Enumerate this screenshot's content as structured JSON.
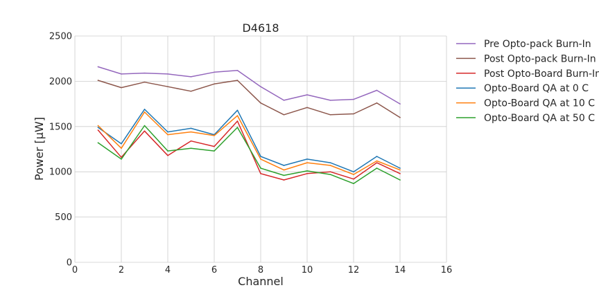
{
  "chart_data": {
    "type": "line",
    "title": "D4618",
    "xlabel": "Channel",
    "ylabel": "Power [μW]",
    "xlim": [
      0,
      16
    ],
    "ylim": [
      0,
      2500
    ],
    "xticks": [
      0,
      2,
      4,
      6,
      8,
      10,
      12,
      14,
      16
    ],
    "yticks": [
      0,
      500,
      1000,
      1500,
      2000,
      2500
    ],
    "grid": true,
    "legend_position": "outside-right",
    "x": [
      1,
      2,
      3,
      4,
      5,
      6,
      7,
      8,
      9,
      10,
      11,
      12,
      13,
      14
    ],
    "series": [
      {
        "name": "Pre Opto-pack Burn-In",
        "color": "#9467bd",
        "values": [
          2160,
          2080,
          2090,
          2080,
          2050,
          2100,
          2120,
          1940,
          1790,
          1850,
          1790,
          1800,
          1900,
          1750
        ]
      },
      {
        "name": "Post Opto-pack Burn-In",
        "color": "#8c564b",
        "values": [
          2010,
          1930,
          1990,
          1940,
          1890,
          1970,
          2010,
          1760,
          1630,
          1710,
          1630,
          1640,
          1760,
          1600
        ]
      },
      {
        "name": "Post Opto-Board Burn-In",
        "color": "#d62728",
        "values": [
          1460,
          1160,
          1450,
          1180,
          1340,
          1280,
          1560,
          980,
          910,
          980,
          1000,
          920,
          1100,
          980
        ]
      },
      {
        "name": "Opto-Board QA at 0 C",
        "color": "#1f77b4",
        "values": [
          1490,
          1310,
          1690,
          1440,
          1480,
          1410,
          1680,
          1170,
          1070,
          1140,
          1100,
          1000,
          1170,
          1040
        ]
      },
      {
        "name": "Opto-Board QA at 10 C",
        "color": "#ff7f0e",
        "values": [
          1510,
          1260,
          1660,
          1410,
          1440,
          1400,
          1620,
          1140,
          1020,
          1100,
          1070,
          970,
          1120,
          1020
        ]
      },
      {
        "name": "Opto-Board QA at 50 C",
        "color": "#2ca02c",
        "values": [
          1320,
          1140,
          1510,
          1230,
          1260,
          1230,
          1490,
          1040,
          960,
          1010,
          970,
          870,
          1040,
          910
        ]
      }
    ]
  }
}
